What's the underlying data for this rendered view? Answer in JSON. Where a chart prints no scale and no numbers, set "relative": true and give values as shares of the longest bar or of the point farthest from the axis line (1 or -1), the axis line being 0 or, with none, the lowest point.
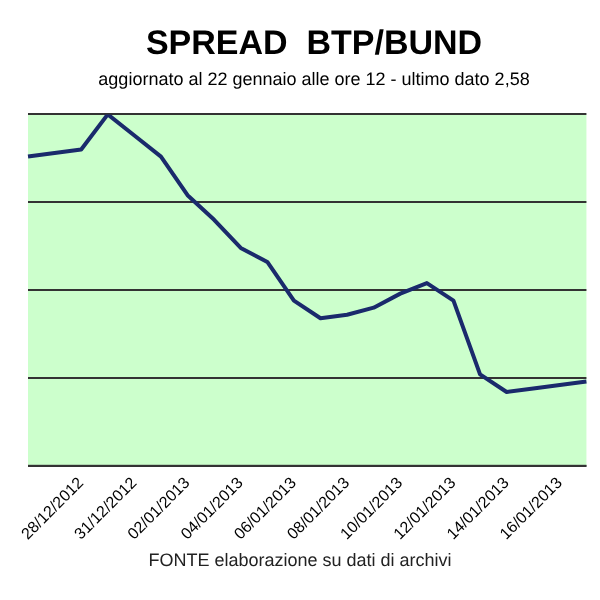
{
  "chart_data": {
    "type": "line",
    "title": "SPREAD  BTP/BUND",
    "subtitle": "aggiornato al 22 gennaio alle ore 12 - ultimo dato 2,58",
    "categories": [
      null,
      null,
      "28/12/2012",
      null,
      "31/12/2012",
      null,
      "02/01/2013",
      null,
      "04/01/2013",
      null,
      "06/01/2013",
      null,
      "08/01/2013",
      null,
      "10/01/2013",
      null,
      "12/01/2013",
      null,
      "14/01/2013",
      null,
      "16/01/2013",
      null
    ],
    "series": [
      {
        "color": "#1a2a6c",
        "values": [
          0.88,
          0.89,
          0.9,
          1,
          0.94,
          0.88,
          0.77,
          0.7,
          0.62,
          0.58,
          0.47,
          0.42,
          0.43,
          0.45,
          0.49,
          0.52,
          0.47,
          0.26,
          0.21,
          0.22,
          0.23,
          0.24
        ]
      }
    ],
    "relative": true,
    "grid": "y",
    "legend": false,
    "marker": "none",
    "line_style": "solid",
    "annotations": [
      "FONTE elaborazione su dati di archivi"
    ]
  }
}
